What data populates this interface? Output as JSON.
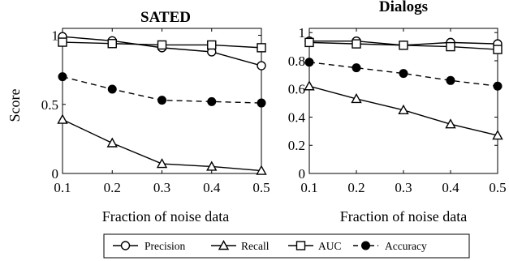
{
  "chart_data": [
    {
      "type": "line",
      "title": "SATED",
      "xlabel": "Fraction of noise data",
      "ylabel": "Score",
      "x": [
        0.1,
        0.2,
        0.3,
        0.4,
        0.5
      ],
      "xlim": [
        0.1,
        0.5
      ],
      "ylim": [
        0,
        1.05
      ],
      "xticks": [
        "0.1",
        "0.2",
        "0.3",
        "0.4",
        "0.5"
      ],
      "yticks": [
        {
          "value": 0,
          "label": "0"
        },
        {
          "value": 0.5,
          "label": "0.5"
        },
        {
          "value": 1,
          "label": "1"
        }
      ],
      "series": [
        {
          "name": "Precision",
          "marker": "circle",
          "dashed": false,
          "values": [
            0.99,
            0.96,
            0.91,
            0.88,
            0.78
          ]
        },
        {
          "name": "Recall",
          "marker": "triangle",
          "dashed": false,
          "values": [
            0.39,
            0.22,
            0.07,
            0.05,
            0.02
          ]
        },
        {
          "name": "AUC",
          "marker": "square",
          "dashed": false,
          "values": [
            0.95,
            0.94,
            0.93,
            0.93,
            0.91
          ]
        },
        {
          "name": "Accuracy",
          "marker": "filled-circle",
          "dashed": true,
          "values": [
            0.7,
            0.61,
            0.53,
            0.52,
            0.51
          ]
        }
      ]
    },
    {
      "type": "line",
      "title": "Dialogs",
      "xlabel": "Fraction of noise data",
      "ylabel": "",
      "x": [
        0.1,
        0.2,
        0.3,
        0.4,
        0.5
      ],
      "xlim": [
        0.1,
        0.5
      ],
      "ylim": [
        0,
        1.03
      ],
      "xticks": [
        "0.1",
        "0.2",
        "0.3",
        "0.4",
        "0.5"
      ],
      "yticks": [
        {
          "value": 0,
          "label": "0"
        },
        {
          "value": 0.2,
          "label": "0.2"
        },
        {
          "value": 0.4,
          "label": "0.4"
        },
        {
          "value": 0.6,
          "label": "0.6"
        },
        {
          "value": 0.8,
          "label": "0.8"
        },
        {
          "value": 1,
          "label": "1"
        }
      ],
      "series": [
        {
          "name": "Precision",
          "marker": "circle",
          "dashed": false,
          "values": [
            0.94,
            0.94,
            0.91,
            0.93,
            0.92
          ]
        },
        {
          "name": "Recall",
          "marker": "triangle",
          "dashed": false,
          "values": [
            0.62,
            0.53,
            0.45,
            0.35,
            0.27
          ]
        },
        {
          "name": "AUC",
          "marker": "square",
          "dashed": false,
          "values": [
            0.93,
            0.92,
            0.91,
            0.9,
            0.88
          ]
        },
        {
          "name": "Accuracy",
          "marker": "filled-circle",
          "dashed": true,
          "values": [
            0.79,
            0.75,
            0.71,
            0.66,
            0.62
          ]
        }
      ]
    }
  ],
  "legend": {
    "placement": "bottom-center",
    "items": [
      {
        "label": "Precision",
        "marker": "circle",
        "dashed": false
      },
      {
        "label": "Recall",
        "marker": "triangle",
        "dashed": false
      },
      {
        "label": "AUC",
        "marker": "square",
        "dashed": false
      },
      {
        "label": "Accuracy",
        "marker": "filled-circle",
        "dashed": true
      }
    ]
  }
}
